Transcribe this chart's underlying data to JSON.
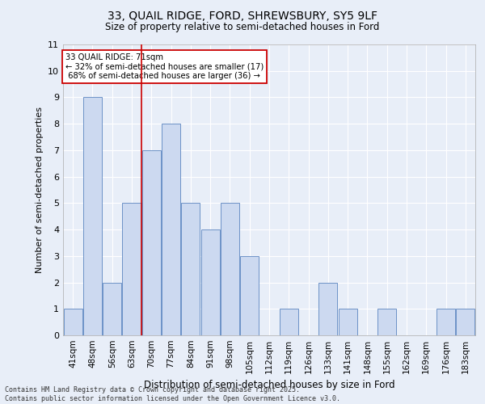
{
  "title_line1": "33, QUAIL RIDGE, FORD, SHREWSBURY, SY5 9LF",
  "title_line2": "Size of property relative to semi-detached houses in Ford",
  "xlabel": "Distribution of semi-detached houses by size in Ford",
  "ylabel": "Number of semi-detached properties",
  "categories": [
    "41sqm",
    "48sqm",
    "56sqm",
    "63sqm",
    "70sqm",
    "77sqm",
    "84sqm",
    "91sqm",
    "98sqm",
    "105sqm",
    "112sqm",
    "119sqm",
    "126sqm",
    "133sqm",
    "141sqm",
    "148sqm",
    "155sqm",
    "162sqm",
    "169sqm",
    "176sqm",
    "183sqm"
  ],
  "values": [
    1,
    9,
    2,
    5,
    7,
    8,
    5,
    4,
    5,
    3,
    0,
    1,
    0,
    2,
    1,
    0,
    1,
    0,
    0,
    1,
    1
  ],
  "bar_color": "#ccd9f0",
  "bar_edge_color": "#5b85c0",
  "vline_x_index": 3.5,
  "highlight_label": "33 QUAIL RIDGE: 71sqm",
  "pct_smaller": "32%",
  "pct_smaller_count": 17,
  "pct_larger": "68%",
  "pct_larger_count": 36,
  "annotation_box_color": "#ffffff",
  "annotation_box_edge": "#cc0000",
  "vline_color": "#cc0000",
  "ylim": [
    0,
    11
  ],
  "yticks": [
    0,
    1,
    2,
    3,
    4,
    5,
    6,
    7,
    8,
    9,
    10,
    11
  ],
  "footer_line1": "Contains HM Land Registry data © Crown copyright and database right 2025.",
  "footer_line2": "Contains public sector information licensed under the Open Government Licence v3.0.",
  "bg_color": "#e8eef8",
  "grid_color": "#ffffff"
}
